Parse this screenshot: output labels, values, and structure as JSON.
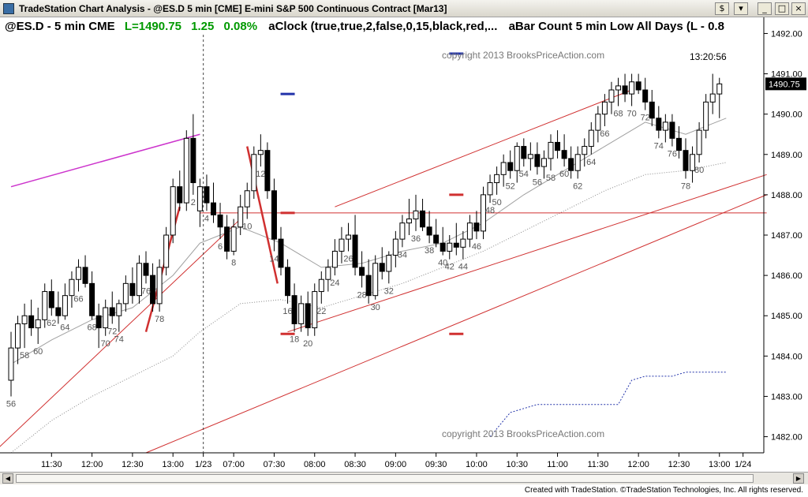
{
  "window": {
    "title": "TradeStation Chart Analysis - @ES.D 5 min [CME] E-mini S&P 500 Continuous Contract [Mar13]",
    "buttons": [
      "$",
      "▾",
      "_",
      "□",
      "×"
    ]
  },
  "header": {
    "symbol_text": "@ES.D - 5 min  CME",
    "last_text": "L=1490.75",
    "change_text": "1.25",
    "pct_text": "0.08%",
    "study1": "aClock (true,true,2,false,0,15,black,red,...",
    "study2": "aBar Count 5 min Low All Days (L - 0.8"
  },
  "watermarks": [
    "copyright 2013 BrooksPriceAction.com",
    "copyright 2013 BrooksPriceAction.com"
  ],
  "clock": "13:20:56",
  "last_price_tag": "1490.75",
  "footer": "Created with TradeStation. ©TradeStation Technologies, Inc. All rights reserved.",
  "colors": {
    "up": "#ffffff",
    "down": "#000000",
    "channel": "#d03030",
    "ma": "#a0a0a0",
    "accent_green": "#009900",
    "magenta": "#cc33cc",
    "blue": "#2233aa"
  },
  "chart_data": {
    "type": "candlestick",
    "ylim": [
      1481.6,
      1492.4
    ],
    "y_ticks": [
      1482,
      1483,
      1484,
      1485,
      1486,
      1487,
      1488,
      1489,
      1490,
      1491,
      1492
    ],
    "y_tick_labels": [
      "1482.00",
      "1483.00",
      "1484.00",
      "1485.00",
      "1486.00",
      "1487.00",
      "1488.00",
      "1489.00",
      "1490.00",
      "1491.00",
      "1492.00"
    ],
    "x_labels": [
      {
        "bar": 6,
        "label": "11:30"
      },
      {
        "bar": 12,
        "label": "12:00"
      },
      {
        "bar": 18,
        "label": "12:30"
      },
      {
        "bar": 24,
        "label": "13:00"
      },
      {
        "bar": 28.5,
        "label": "1/23"
      },
      {
        "bar": 33,
        "label": "07:00"
      },
      {
        "bar": 39,
        "label": "07:30"
      },
      {
        "bar": 45,
        "label": "08:00"
      },
      {
        "bar": 51,
        "label": "08:30"
      },
      {
        "bar": 57,
        "label": "09:00"
      },
      {
        "bar": 63,
        "label": "09:30"
      },
      {
        "bar": 69,
        "label": "10:00"
      },
      {
        "bar": 75,
        "label": "10:30"
      },
      {
        "bar": 81,
        "label": "11:00"
      },
      {
        "bar": 87,
        "label": "11:30"
      },
      {
        "bar": 93,
        "label": "12:00"
      },
      {
        "bar": 99,
        "label": "12:30"
      },
      {
        "bar": 105,
        "label": "13:00"
      },
      {
        "bar": 108.5,
        "label": "1/24"
      }
    ],
    "session_break_bar": 28.5,
    "bars": [
      [
        1483.4,
        1484.6,
        1483.0,
        1484.2
      ],
      [
        1484.2,
        1485.0,
        1483.8,
        1484.8
      ],
      [
        1484.8,
        1485.3,
        1484.2,
        1485.0
      ],
      [
        1485.0,
        1485.4,
        1484.5,
        1484.7
      ],
      [
        1484.7,
        1485.2,
        1484.3,
        1484.9
      ],
      [
        1484.9,
        1485.8,
        1484.7,
        1485.6
      ],
      [
        1485.6,
        1485.9,
        1485.0,
        1485.2
      ],
      [
        1485.2,
        1485.6,
        1484.8,
        1485.0
      ],
      [
        1485.0,
        1485.8,
        1484.9,
        1485.5
      ],
      [
        1485.5,
        1486.1,
        1485.2,
        1485.9
      ],
      [
        1485.9,
        1486.4,
        1485.6,
        1486.2
      ],
      [
        1486.2,
        1486.5,
        1485.7,
        1485.8
      ],
      [
        1485.8,
        1486.1,
        1484.9,
        1485.0
      ],
      [
        1485.0,
        1485.3,
        1484.2,
        1484.7
      ],
      [
        1484.7,
        1485.4,
        1484.5,
        1485.2
      ],
      [
        1485.2,
        1485.6,
        1484.8,
        1485.0
      ],
      [
        1485.0,
        1485.4,
        1484.6,
        1485.3
      ],
      [
        1485.3,
        1486.0,
        1485.1,
        1485.8
      ],
      [
        1485.8,
        1486.2,
        1485.3,
        1485.5
      ],
      [
        1485.5,
        1486.5,
        1485.3,
        1486.3
      ],
      [
        1486.3,
        1486.6,
        1485.8,
        1486.0
      ],
      [
        1486.0,
        1486.3,
        1485.1,
        1485.3
      ],
      [
        1485.3,
        1486.4,
        1485.1,
        1486.2
      ],
      [
        1486.2,
        1487.2,
        1486.0,
        1487.0
      ],
      [
        1487.0,
        1488.4,
        1486.8,
        1488.2
      ],
      [
        1488.2,
        1488.6,
        1487.6,
        1487.8
      ],
      [
        1487.8,
        1489.6,
        1487.6,
        1489.4
      ],
      [
        1489.4,
        1490.0,
        1488.0,
        1488.3
      ],
      [
        1487.6,
        1488.4,
        1487.2,
        1488.2
      ],
      [
        1488.2,
        1488.5,
        1487.6,
        1487.8
      ],
      [
        1487.8,
        1488.3,
        1487.3,
        1487.5
      ],
      [
        1487.5,
        1487.8,
        1486.9,
        1487.2
      ],
      [
        1487.2,
        1487.5,
        1486.4,
        1486.6
      ],
      [
        1486.6,
        1487.4,
        1486.5,
        1487.2
      ],
      [
        1487.2,
        1488.0,
        1487.0,
        1487.7
      ],
      [
        1487.7,
        1488.3,
        1487.4,
        1488.1
      ],
      [
        1488.1,
        1489.2,
        1487.9,
        1489.0
      ],
      [
        1489.0,
        1489.5,
        1488.7,
        1489.1
      ],
      [
        1489.1,
        1489.3,
        1487.9,
        1488.1
      ],
      [
        1488.1,
        1488.4,
        1486.6,
        1486.9
      ],
      [
        1486.9,
        1487.2,
        1486.0,
        1486.2
      ],
      [
        1486.2,
        1486.4,
        1485.3,
        1485.5
      ],
      [
        1485.5,
        1485.8,
        1484.6,
        1484.8
      ],
      [
        1484.8,
        1485.5,
        1484.6,
        1485.3
      ],
      [
        1485.3,
        1485.6,
        1484.5,
        1484.7
      ],
      [
        1484.7,
        1485.8,
        1484.5,
        1485.6
      ],
      [
        1485.6,
        1486.1,
        1485.3,
        1485.9
      ],
      [
        1485.9,
        1486.4,
        1485.6,
        1486.2
      ],
      [
        1486.2,
        1486.9,
        1486.0,
        1486.6
      ],
      [
        1486.6,
        1487.2,
        1486.3,
        1486.9
      ],
      [
        1486.9,
        1487.3,
        1486.6,
        1487.0
      ],
      [
        1487.0,
        1487.5,
        1486.0,
        1486.2
      ],
      [
        1486.2,
        1486.6,
        1485.7,
        1486.0
      ],
      [
        1486.0,
        1486.4,
        1485.3,
        1485.5
      ],
      [
        1485.5,
        1486.5,
        1485.4,
        1486.3
      ],
      [
        1486.3,
        1486.7,
        1485.9,
        1486.1
      ],
      [
        1486.1,
        1486.6,
        1485.8,
        1486.5
      ],
      [
        1486.5,
        1487.1,
        1486.2,
        1486.9
      ],
      [
        1486.9,
        1487.5,
        1486.7,
        1487.3
      ],
      [
        1487.3,
        1487.9,
        1487.0,
        1487.4
      ],
      [
        1487.4,
        1488.0,
        1487.1,
        1487.6
      ],
      [
        1487.6,
        1487.9,
        1487.1,
        1487.2
      ],
      [
        1487.2,
        1487.6,
        1486.8,
        1487.0
      ],
      [
        1487.0,
        1487.4,
        1486.7,
        1486.8
      ],
      [
        1486.8,
        1487.2,
        1486.5,
        1486.6
      ],
      [
        1486.6,
        1487.0,
        1486.4,
        1486.8
      ],
      [
        1486.8,
        1487.3,
        1486.5,
        1486.7
      ],
      [
        1486.7,
        1487.1,
        1486.4,
        1486.9
      ],
      [
        1486.9,
        1487.5,
        1486.7,
        1487.3
      ],
      [
        1487.3,
        1487.6,
        1486.9,
        1487.1
      ],
      [
        1487.1,
        1488.2,
        1486.9,
        1488.0
      ],
      [
        1488.0,
        1488.5,
        1487.8,
        1488.3
      ],
      [
        1488.3,
        1488.7,
        1488.0,
        1488.5
      ],
      [
        1488.5,
        1489.0,
        1488.2,
        1488.8
      ],
      [
        1488.8,
        1489.1,
        1488.4,
        1488.6
      ],
      [
        1488.6,
        1489.3,
        1488.3,
        1489.2
      ],
      [
        1489.2,
        1489.4,
        1488.7,
        1488.9
      ],
      [
        1488.9,
        1489.3,
        1488.6,
        1489.0
      ],
      [
        1489.0,
        1489.3,
        1488.5,
        1488.7
      ],
      [
        1488.7,
        1489.1,
        1488.4,
        1488.9
      ],
      [
        1488.9,
        1489.5,
        1488.6,
        1489.3
      ],
      [
        1489.3,
        1489.6,
        1488.9,
        1489.1
      ],
      [
        1489.1,
        1489.5,
        1488.7,
        1488.9
      ],
      [
        1488.9,
        1489.2,
        1488.4,
        1488.6
      ],
      [
        1488.6,
        1489.2,
        1488.4,
        1489.0
      ],
      [
        1489.0,
        1489.4,
        1488.7,
        1489.2
      ],
      [
        1489.2,
        1489.8,
        1489.0,
        1489.6
      ],
      [
        1489.6,
        1490.2,
        1489.3,
        1490.0
      ],
      [
        1490.0,
        1490.5,
        1489.7,
        1490.3
      ],
      [
        1490.3,
        1490.8,
        1490.0,
        1490.6
      ],
      [
        1490.6,
        1490.9,
        1490.2,
        1490.7
      ],
      [
        1490.7,
        1491.0,
        1490.3,
        1490.5
      ],
      [
        1490.5,
        1491.0,
        1490.2,
        1490.8
      ],
      [
        1490.8,
        1491.0,
        1490.5,
        1490.6
      ],
      [
        1490.6,
        1490.9,
        1490.1,
        1490.3
      ],
      [
        1490.3,
        1490.6,
        1489.7,
        1489.9
      ],
      [
        1489.9,
        1490.2,
        1489.4,
        1489.6
      ],
      [
        1489.6,
        1490.0,
        1489.3,
        1489.8
      ],
      [
        1489.8,
        1490.0,
        1489.2,
        1489.4
      ],
      [
        1489.4,
        1489.7,
        1488.9,
        1489.1
      ],
      [
        1489.1,
        1489.4,
        1488.4,
        1488.6
      ],
      [
        1488.6,
        1489.2,
        1488.3,
        1489.0
      ],
      [
        1489.0,
        1489.8,
        1488.8,
        1489.6
      ],
      [
        1489.6,
        1490.5,
        1489.4,
        1490.3
      ],
      [
        1490.3,
        1491.0,
        1490.0,
        1490.5
      ],
      [
        1490.5,
        1490.9,
        1489.9,
        1490.75
      ]
    ],
    "bar_count_labels": [
      {
        "bar": 0,
        "text": "56"
      },
      {
        "bar": 2,
        "text": "58"
      },
      {
        "bar": 4,
        "text": "60"
      },
      {
        "bar": 6,
        "text": "62"
      },
      {
        "bar": 8,
        "text": "64"
      },
      {
        "bar": 10,
        "text": "66"
      },
      {
        "bar": 12,
        "text": "68"
      },
      {
        "bar": 14,
        "text": "70"
      },
      {
        "bar": 15,
        "text": "72"
      },
      {
        "bar": 16,
        "text": "74"
      },
      {
        "bar": 20,
        "text": "76"
      },
      {
        "bar": 22,
        "text": "78"
      },
      {
        "bar": 27,
        "text": "2"
      },
      {
        "bar": 29,
        "text": "4"
      },
      {
        "bar": 31,
        "text": "6"
      },
      {
        "bar": 33,
        "text": "8"
      },
      {
        "bar": 35,
        "text": "10"
      },
      {
        "bar": 37,
        "text": "12"
      },
      {
        "bar": 39,
        "text": "14"
      },
      {
        "bar": 41,
        "text": "16"
      },
      {
        "bar": 42,
        "text": "18"
      },
      {
        "bar": 44,
        "text": "20"
      },
      {
        "bar": 46,
        "text": "22"
      },
      {
        "bar": 48,
        "text": "24"
      },
      {
        "bar": 50,
        "text": "26"
      },
      {
        "bar": 52,
        "text": "28"
      },
      {
        "bar": 54,
        "text": "30"
      },
      {
        "bar": 56,
        "text": "32"
      },
      {
        "bar": 58,
        "text": "34"
      },
      {
        "bar": 60,
        "text": "36"
      },
      {
        "bar": 62,
        "text": "38"
      },
      {
        "bar": 64,
        "text": "40"
      },
      {
        "bar": 65,
        "text": "42"
      },
      {
        "bar": 67,
        "text": "44"
      },
      {
        "bar": 69,
        "text": "46"
      },
      {
        "bar": 71,
        "text": "48"
      },
      {
        "bar": 72,
        "text": "50"
      },
      {
        "bar": 74,
        "text": "52"
      },
      {
        "bar": 76,
        "text": "54"
      },
      {
        "bar": 78,
        "text": "56"
      },
      {
        "bar": 80,
        "text": "58"
      },
      {
        "bar": 82,
        "text": "60"
      },
      {
        "bar": 84,
        "text": "62"
      },
      {
        "bar": 86,
        "text": "64"
      },
      {
        "bar": 88,
        "text": "66"
      },
      {
        "bar": 90,
        "text": "68"
      },
      {
        "bar": 92,
        "text": "70"
      },
      {
        "bar": 94,
        "text": "72"
      },
      {
        "bar": 96,
        "text": "74"
      },
      {
        "bar": 98,
        "text": "76"
      },
      {
        "bar": 100,
        "text": "78"
      },
      {
        "bar": 102,
        "text": "80"
      }
    ],
    "ma_line": [
      [
        0,
        1483.8
      ],
      [
        6,
        1484.4
      ],
      [
        12,
        1484.9
      ],
      [
        18,
        1485.2
      ],
      [
        24,
        1486.0
      ],
      [
        28,
        1486.8
      ],
      [
        34,
        1487.2
      ],
      [
        40,
        1486.8
      ],
      [
        46,
        1486.2
      ],
      [
        52,
        1486.3
      ],
      [
        58,
        1486.6
      ],
      [
        64,
        1486.8
      ],
      [
        70,
        1487.3
      ],
      [
        76,
        1488.0
      ],
      [
        82,
        1488.6
      ],
      [
        88,
        1489.2
      ],
      [
        94,
        1489.8
      ],
      [
        100,
        1489.5
      ],
      [
        106,
        1489.9
      ]
    ],
    "lower_dotted_line": [
      [
        0,
        1481.6
      ],
      [
        6,
        1482.4
      ],
      [
        12,
        1483.0
      ],
      [
        18,
        1483.5
      ],
      [
        24,
        1484.0
      ],
      [
        28,
        1484.6
      ],
      [
        34,
        1485.3
      ],
      [
        40,
        1485.4
      ],
      [
        46,
        1485.2
      ],
      [
        52,
        1485.5
      ],
      [
        58,
        1485.8
      ],
      [
        64,
        1486.2
      ],
      [
        70,
        1486.6
      ],
      [
        76,
        1487.1
      ],
      [
        82,
        1487.6
      ],
      [
        88,
        1488.1
      ],
      [
        94,
        1488.5
      ],
      [
        100,
        1488.6
      ],
      [
        106,
        1488.8
      ]
    ],
    "blue_dotted_line": [
      [
        71,
        1482.0
      ],
      [
        74,
        1482.6
      ],
      [
        76,
        1482.7
      ],
      [
        78,
        1482.8
      ],
      [
        84,
        1482.8
      ],
      [
        90,
        1482.8
      ],
      [
        92,
        1483.4
      ],
      [
        94,
        1483.5
      ],
      [
        98,
        1483.5
      ],
      [
        100,
        1483.6
      ],
      [
        106,
        1483.6
      ]
    ],
    "trend_lines": [
      {
        "from": [
          -2,
          1481.7
        ],
        "to": [
          34,
          1487.4
        ],
        "color": "channel",
        "width": 1
      },
      {
        "from": [
          20,
          1481.6
        ],
        "to": [
          112,
          1488.0
        ],
        "color": "channel",
        "width": 1
      },
      {
        "from": [
          41,
          1484.6
        ],
        "to": [
          112,
          1488.5
        ],
        "color": "channel",
        "width": 1
      },
      {
        "from": [
          48,
          1487.7
        ],
        "to": [
          92,
          1490.6
        ],
        "color": "channel",
        "width": 1
      },
      {
        "from": [
          20,
          1484.6
        ],
        "to": [
          25,
          1487.7
        ],
        "color": "channel",
        "width": 2.5
      },
      {
        "from": [
          35,
          1489.2
        ],
        "to": [
          39.5,
          1485.8
        ],
        "color": "channel",
        "width": 2.5
      },
      {
        "from": [
          0,
          1488.2
        ],
        "to": [
          28,
          1489.5
        ],
        "color": "magenta",
        "width": 1.5
      }
    ],
    "horizontal_line": {
      "y": 1487.55,
      "from": 28,
      "to": 112
    },
    "price_markers": [
      {
        "bar": 41,
        "y": 1490.5,
        "color": "blue"
      },
      {
        "bar": 66,
        "y": 1491.5,
        "color": "blue"
      },
      {
        "bar": 41,
        "y": 1487.55,
        "color": "channel"
      },
      {
        "bar": 66,
        "y": 1488.0,
        "color": "channel"
      },
      {
        "bar": 66,
        "y": 1484.55,
        "color": "channel"
      },
      {
        "bar": 41,
        "y": 1484.55,
        "color": "channel"
      }
    ]
  }
}
